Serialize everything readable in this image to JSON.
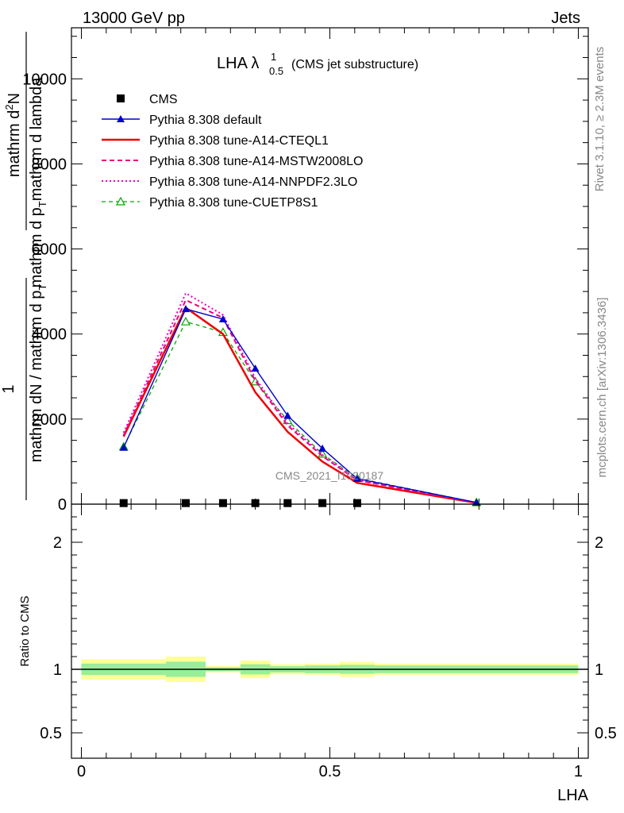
{
  "header": {
    "left": "13000 GeV pp",
    "right": "Jets"
  },
  "plot_title": {
    "main": "LHA λ",
    "sup": "1",
    "sub": "0.5",
    "paren": "(CMS jet substructure)"
  },
  "side_labels": {
    "rivet": "Rivet 3.1.10, ≥ 2.3M events",
    "mcplots": "mcplots.cern.ch [arXiv:1306.3436]"
  },
  "watermark": "CMS_2021_I1920187",
  "chart_data": [
    {
      "type": "line",
      "ylabel_parts": [
        "1",
        "mathrm dN / mathrm d p",
        "mathrm d p",
        "mathrm d lambda",
        "mathrm d",
        "mathrm d",
        "N"
      ],
      "ylabel_fraction": {
        "numerator_left": "1",
        "numerator_right": "mathrm d",
        "numerator_right_sup": "2",
        "numerator_right_tail": "N",
        "denominator_left": "mathrm dN / mathrm d p",
        "denominator_left_sub": "T",
        "denominator_right": "mathrm d p",
        "denominator_right_sub": "T",
        "denominator_right_tail": "mathrm d lambda"
      },
      "ylim": [
        0,
        11200
      ],
      "xlim": [
        -0.02,
        1.02
      ],
      "y_ticks": [
        0,
        2000,
        4000,
        6000,
        8000,
        10000
      ],
      "y_tick_labels": [
        "0",
        "2000",
        "4000",
        "6000",
        "8000",
        "10000"
      ],
      "legend_position": "top-left",
      "series": [
        {
          "name": "CMS",
          "style": "square-marker",
          "color": "#000000",
          "x": [
            0.085,
            0.21,
            0.285,
            0.35,
            0.415,
            0.485,
            0.555
          ],
          "y": [
            25,
            25,
            25,
            25,
            25,
            25,
            25
          ]
        },
        {
          "name": "Pythia 8.308 default",
          "style": "solid-line-filled-triangle",
          "color": "#0000cc",
          "x": [
            0.085,
            0.21,
            0.285,
            0.35,
            0.415,
            0.485,
            0.555,
            0.795
          ],
          "y": [
            1330,
            4590,
            4350,
            3190,
            2080,
            1310,
            600,
            40
          ]
        },
        {
          "name": "Pythia 8.308 tune-A14-CTEQL1",
          "style": "solid-thick",
          "color": "#ee0000",
          "x": [
            0.085,
            0.21,
            0.285,
            0.35,
            0.415,
            0.485,
            0.555,
            0.795
          ],
          "y": [
            1590,
            4620,
            4000,
            2630,
            1700,
            1000,
            500,
            30
          ]
        },
        {
          "name": "Pythia 8.308 tune-A14-MSTW2008LO",
          "style": "dashed",
          "color": "#ee0077",
          "x": [
            0.085,
            0.21,
            0.285,
            0.35,
            0.415,
            0.485,
            0.555,
            0.795
          ],
          "y": [
            1620,
            4800,
            4380,
            2900,
            1850,
            1130,
            560,
            35
          ]
        },
        {
          "name": "Pythia 8.308 tune-A14-NNPDF2.3LO",
          "style": "dotted",
          "color": "#ee00cc",
          "x": [
            0.085,
            0.21,
            0.285,
            0.35,
            0.415,
            0.485,
            0.555,
            0.795
          ],
          "y": [
            1680,
            4960,
            4450,
            2960,
            1900,
            1160,
            570,
            35
          ]
        },
        {
          "name": "Pythia 8.308 tune-CUETP8S1",
          "style": "dashed-open-triangle",
          "color": "#00aa00",
          "x": [
            0.085,
            0.21,
            0.285,
            0.35,
            0.415,
            0.485,
            0.555,
            0.795
          ],
          "y": [
            1350,
            4290,
            4040,
            2880,
            1970,
            1180,
            610,
            40
          ]
        }
      ]
    },
    {
      "type": "area",
      "ylabel": "Ratio to CMS",
      "xlabel": "LHA",
      "ylim": [
        0.3,
        2.3
      ],
      "xlim": [
        -0.02,
        1.02
      ],
      "y_ticks": [
        0.5,
        1,
        2
      ],
      "y_tick_labels": [
        "0.5",
        "1",
        "2"
      ],
      "x_ticks": [
        0,
        0.5,
        1
      ],
      "x_tick_labels": [
        "0",
        "0.5",
        "1"
      ],
      "reference_line": 1,
      "bins": [
        {
          "x0": 0.0,
          "x1": 0.17,
          "inner": [
            0.955,
            1.045
          ],
          "outer": [
            0.92,
            1.08
          ]
        },
        {
          "x0": 0.17,
          "x1": 0.25,
          "inner": [
            0.94,
            1.06
          ],
          "outer": [
            0.9,
            1.1
          ]
        },
        {
          "x0": 0.25,
          "x1": 0.32,
          "inner": [
            0.985,
            1.015
          ],
          "outer": [
            0.975,
            1.025
          ]
        },
        {
          "x0": 0.32,
          "x1": 0.38,
          "inner": [
            0.96,
            1.04
          ],
          "outer": [
            0.93,
            1.07
          ]
        },
        {
          "x0": 0.38,
          "x1": 0.45,
          "inner": [
            0.975,
            1.025
          ],
          "outer": [
            0.96,
            1.04
          ]
        },
        {
          "x0": 0.45,
          "x1": 0.52,
          "inner": [
            0.97,
            1.03
          ],
          "outer": [
            0.955,
            1.045
          ]
        },
        {
          "x0": 0.52,
          "x1": 0.59,
          "inner": [
            0.965,
            1.035
          ],
          "outer": [
            0.94,
            1.06
          ]
        },
        {
          "x0": 0.59,
          "x1": 1.0,
          "inner": [
            0.97,
            1.03
          ],
          "outer": [
            0.955,
            1.045
          ]
        }
      ],
      "colors": {
        "inner": "#99ee99",
        "outer": "#ffff99",
        "line": "#000000"
      }
    }
  ]
}
